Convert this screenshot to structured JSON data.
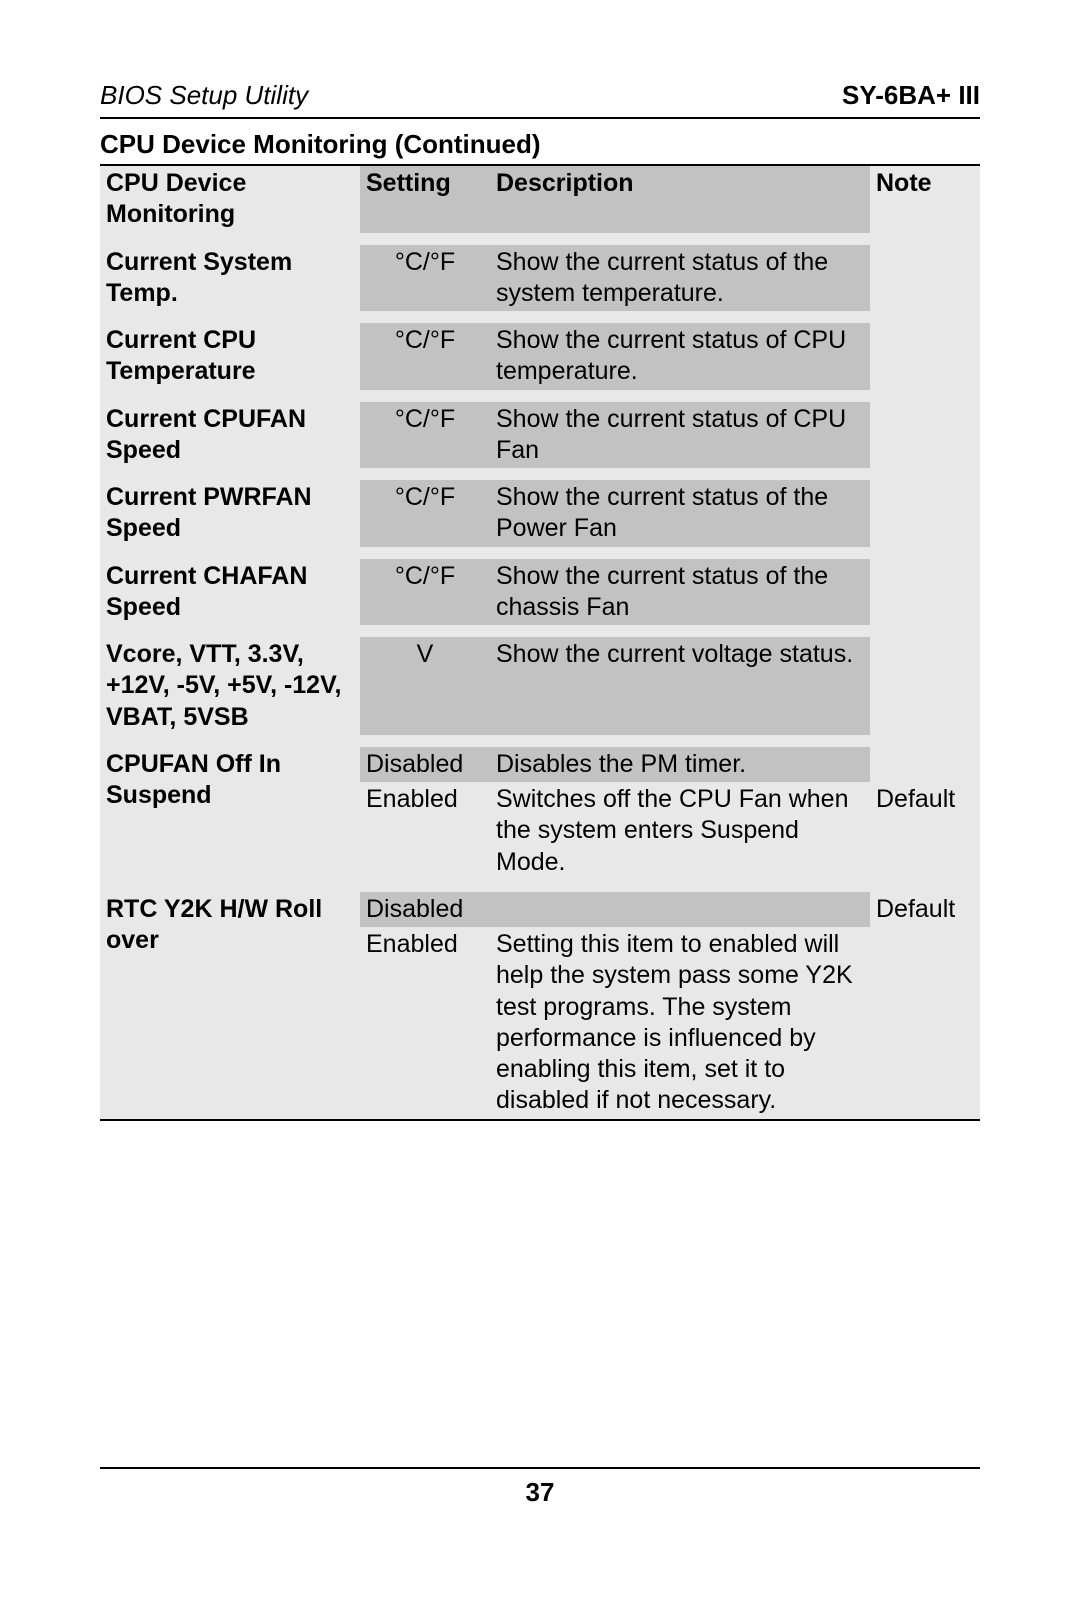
{
  "header": {
    "left": "BIOS Setup Utility",
    "right": "SY-6BA+ III"
  },
  "section_title": "CPU Device Monitoring (Continued)",
  "columns": {
    "name": "CPU Device Monitoring",
    "setting": "Setting",
    "description": "Description",
    "note": "Note"
  },
  "rows": [
    {
      "name": "Current System Temp.",
      "setting": "°C/°F",
      "description": "Show the current status of the system temperature.",
      "note": ""
    },
    {
      "name": "Current CPU Temperature",
      "setting": "°C/°F",
      "description": "Show the current status of CPU temperature.",
      "note": ""
    },
    {
      "name": "Current CPUFAN Speed",
      "setting": "°C/°F",
      "description": "Show the current status of CPU Fan",
      "note": ""
    },
    {
      "name": "Current PWRFAN Speed",
      "setting": "°C/°F",
      "description": "Show the current status of the Power Fan",
      "note": ""
    },
    {
      "name": "Current CHAFAN Speed",
      "setting": "°C/°F",
      "description": "Show the current status of the chassis Fan",
      "note": ""
    },
    {
      "name": "Vcore, VTT, 3.3V, +12V, -5V, +5V, -12V, VBAT, 5VSB",
      "setting": "V",
      "description": "Show the current voltage status.",
      "note": ""
    }
  ],
  "multi_rows": [
    {
      "name": "CPUFAN Off In Suspend",
      "subs": [
        {
          "setting": "Disabled",
          "description": "Disables the PM timer.",
          "note": ""
        },
        {
          "setting": "Enabled",
          "description": "Switches off the CPU Fan when the system enters Suspend Mode.",
          "note": "Default"
        }
      ]
    },
    {
      "name": "RTC Y2K H/W Roll over",
      "subs": [
        {
          "setting": "Disabled",
          "description": "",
          "note": "Default"
        },
        {
          "setting": "Enabled",
          "description": "Setting this item to enabled will help the system pass some Y2K test programs. The system performance is influenced by enabling this item, set it to disabled if not necessary.",
          "note": ""
        }
      ]
    }
  ],
  "page_number": "37",
  "colors": {
    "light": "#e8e8e8",
    "dark": "#c2c2c2",
    "text": "#000000",
    "bg": "#ffffff"
  }
}
